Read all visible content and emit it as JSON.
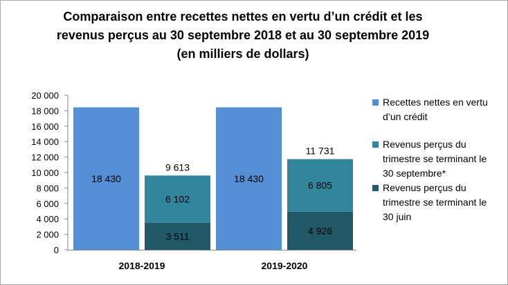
{
  "chart_data": {
    "type": "bar",
    "stacked": true,
    "title_lines": [
      "Comparaison entre recettes nettes en vertu d’un crédit et les",
      "revenus perçus au 30 septembre 2018 et au 30 septembre 2019",
      "(en milliers de dollars)"
    ],
    "categories": [
      "2018-2019",
      "2019-2020"
    ],
    "series": [
      {
        "name": "Recettes nettes en vertu d’un crédit",
        "legend_lines": [
          "Recettes nettes en vertu",
          "d’un crédit"
        ],
        "color": "#558ed5",
        "group": "recettes",
        "values": [
          18430,
          18430
        ],
        "labels": [
          "18 430",
          "18 430"
        ]
      },
      {
        "name": "Revenus perçus du trimestre se terminant le 30 juin",
        "legend_lines": [
          "Revenus perçus du",
          "trimestre se terminant le",
          "30 juin"
        ],
        "color": "#215868",
        "group": "revenus",
        "values": [
          3511,
          4926
        ],
        "labels": [
          "3 511",
          "4 926"
        ]
      },
      {
        "name": "Revenus perçus du trimestre se terminant le 30 septembre*",
        "legend_lines": [
          "Revenus perçus du",
          "trimestre se terminant le",
          "30 septembre*"
        ],
        "color": "#31859c",
        "group": "revenus",
        "values": [
          6102,
          6805
        ],
        "labels": [
          "6 102",
          "6 805"
        ]
      }
    ],
    "legend_order": [
      0,
      2,
      1
    ],
    "totals": {
      "group": "revenus",
      "values": [
        9613,
        11731
      ],
      "labels": [
        "9 613",
        "11 731"
      ]
    },
    "ylim": [
      0,
      20000
    ],
    "ytick_step": 2000,
    "ytick_labels": [
      "0",
      "2 000",
      "4 000",
      "6 000",
      "8 000",
      "10 000",
      "12 000",
      "14 000",
      "16 000",
      "18 000",
      "20 000"
    ],
    "grid": false,
    "legend_position": "right"
  }
}
